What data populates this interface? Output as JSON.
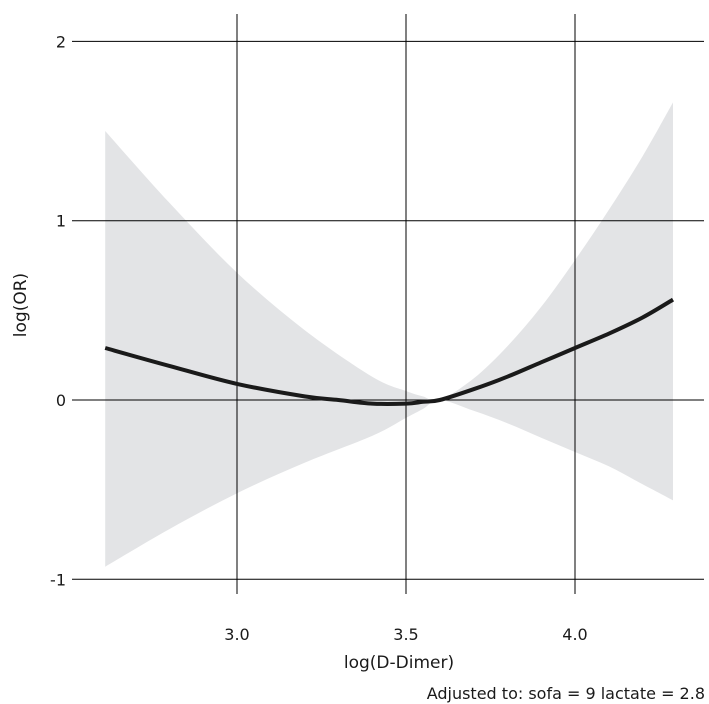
{
  "chart_data": {
    "type": "line",
    "xlabel": "log(D-Dimer)",
    "ylabel": "log(OR)",
    "xlim": [
      2.5,
      4.37
    ],
    "ylim": [
      -1.1,
      2.1
    ],
    "x_ticks": [
      3.0,
      3.5,
      4.0
    ],
    "x_tick_labels": [
      "3.0",
      "3.5",
      "4.0"
    ],
    "y_ticks": [
      -1,
      0,
      1,
      2
    ],
    "y_tick_labels": [
      "-1",
      "0",
      "1",
      "2"
    ],
    "grid": true,
    "legend": "none",
    "colors": {
      "line": "#1a1a1a",
      "band": "#e3e4e6",
      "grid": "#000000"
    },
    "annotation": "Adjusted to: sofa = 9 lactate = 2.8",
    "series": [
      {
        "role": "estimate",
        "x": [
          2.61,
          2.8,
          3.0,
          3.2,
          3.3,
          3.4,
          3.5,
          3.55,
          3.6,
          3.7,
          3.8,
          3.9,
          4.0,
          4.1,
          4.2,
          4.29
        ],
        "y": [
          0.29,
          0.19,
          0.09,
          0.02,
          0.0,
          -0.02,
          -0.02,
          -0.01,
          0.0,
          0.06,
          0.13,
          0.21,
          0.29,
          0.37,
          0.46,
          0.56
        ]
      },
      {
        "role": "ci_upper",
        "x": [
          2.61,
          2.8,
          3.0,
          3.2,
          3.4,
          3.5,
          3.55,
          3.6,
          3.7,
          3.8,
          3.9,
          4.0,
          4.1,
          4.2,
          4.29
        ],
        "y": [
          1.5,
          1.1,
          0.71,
          0.39,
          0.13,
          0.05,
          0.02,
          0.0,
          0.12,
          0.3,
          0.52,
          0.78,
          1.06,
          1.36,
          1.66
        ]
      },
      {
        "role": "ci_lower",
        "x": [
          2.61,
          2.8,
          3.0,
          3.2,
          3.4,
          3.5,
          3.55,
          3.6,
          3.7,
          3.8,
          3.9,
          4.0,
          4.1,
          4.2,
          4.29
        ],
        "y": [
          -0.93,
          -0.72,
          -0.52,
          -0.35,
          -0.2,
          -0.1,
          -0.05,
          0.0,
          -0.06,
          -0.13,
          -0.21,
          -0.29,
          -0.37,
          -0.47,
          -0.56
        ]
      }
    ]
  }
}
